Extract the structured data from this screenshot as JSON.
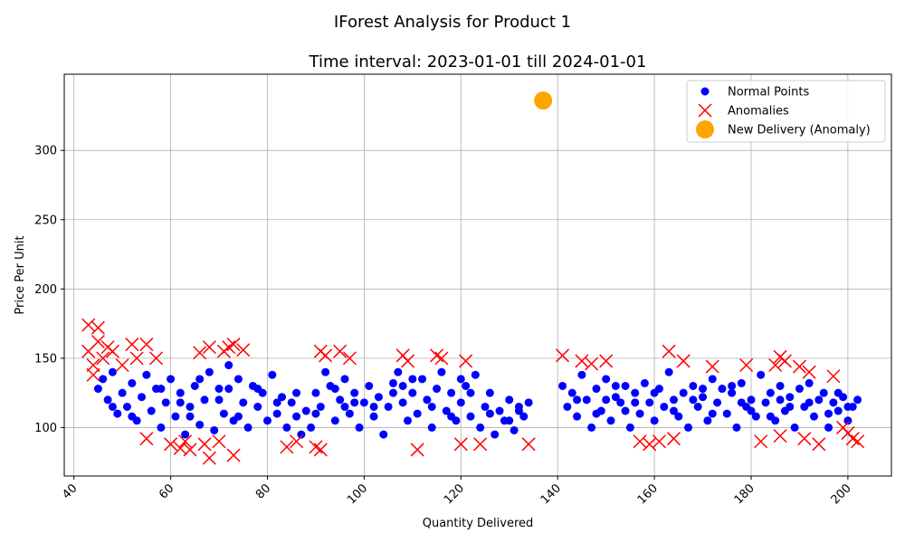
{
  "chart_data": {
    "type": "scatter",
    "title": "IForest Analysis for Product 1",
    "subtitle": "Time interval: 2023-01-01 till 2024-01-01",
    "xlabel": "Quantity Delivered",
    "ylabel": "Price Per Unit",
    "xlim": [
      38,
      209
    ],
    "ylim": [
      65,
      355
    ],
    "x_ticks": [
      40,
      60,
      80,
      100,
      120,
      140,
      160,
      180,
      200
    ],
    "y_ticks": [
      100,
      150,
      200,
      250,
      300
    ],
    "grid": true,
    "legend_position": "top-right",
    "series": [
      {
        "name": "Normal Points",
        "marker": "circle",
        "color": "#0000ff",
        "points": [
          [
            45,
            128
          ],
          [
            46,
            135
          ],
          [
            47,
            120
          ],
          [
            48,
            140
          ],
          [
            49,
            110
          ],
          [
            50,
            125
          ],
          [
            51,
            115
          ],
          [
            52,
            132
          ],
          [
            53,
            105
          ],
          [
            54,
            122
          ],
          [
            55,
            138
          ],
          [
            56,
            112
          ],
          [
            57,
            128
          ],
          [
            58,
            100
          ],
          [
            59,
            118
          ],
          [
            60,
            135
          ],
          [
            61,
            108
          ],
          [
            62,
            125
          ],
          [
            63,
            95
          ],
          [
            64,
            115
          ],
          [
            65,
            130
          ],
          [
            66,
            102
          ],
          [
            67,
            120
          ],
          [
            68,
            140
          ],
          [
            69,
            98
          ],
          [
            70,
            128
          ],
          [
            71,
            110
          ],
          [
            72,
            145
          ],
          [
            73,
            105
          ],
          [
            74,
            135
          ],
          [
            75,
            118
          ],
          [
            76,
            100
          ],
          [
            77,
            130
          ],
          [
            78,
            115
          ],
          [
            79,
            125
          ],
          [
            80,
            105
          ],
          [
            81,
            138
          ],
          [
            82,
            110
          ],
          [
            83,
            122
          ],
          [
            84,
            100
          ],
          [
            85,
            118
          ],
          [
            86,
            108
          ],
          [
            87,
            95
          ],
          [
            88,
            112
          ],
          [
            89,
            100
          ],
          [
            90,
            125
          ],
          [
            91,
            115
          ],
          [
            92,
            140
          ],
          [
            93,
            130
          ],
          [
            94,
            105
          ],
          [
            95,
            120
          ],
          [
            96,
            135
          ],
          [
            97,
            110
          ],
          [
            98,
            125
          ],
          [
            99,
            100
          ],
          [
            100,
            118
          ],
          [
            101,
            130
          ],
          [
            102,
            108
          ],
          [
            103,
            122
          ],
          [
            104,
            95
          ],
          [
            105,
            115
          ],
          [
            106,
            132
          ],
          [
            107,
            140
          ],
          [
            108,
            118
          ],
          [
            109,
            105
          ],
          [
            110,
            125
          ],
          [
            111,
            110
          ],
          [
            112,
            135
          ],
          [
            113,
            120
          ],
          [
            114,
            100
          ],
          [
            115,
            128
          ],
          [
            116,
            140
          ],
          [
            117,
            112
          ],
          [
            118,
            125
          ],
          [
            119,
            105
          ],
          [
            120,
            118
          ],
          [
            121,
            130
          ],
          [
            122,
            108
          ],
          [
            123,
            138
          ],
          [
            124,
            100
          ],
          [
            125,
            115
          ],
          [
            126,
            125
          ],
          [
            127,
            95
          ],
          [
            128,
            112
          ],
          [
            129,
            105
          ],
          [
            130,
            120
          ],
          [
            131,
            98
          ],
          [
            132,
            115
          ],
          [
            133,
            108
          ],
          [
            134,
            118
          ],
          [
            141,
            130
          ],
          [
            142,
            115
          ],
          [
            143,
            125
          ],
          [
            144,
            108
          ],
          [
            145,
            138
          ],
          [
            146,
            120
          ],
          [
            147,
            100
          ],
          [
            148,
            128
          ],
          [
            149,
            112
          ],
          [
            150,
            135
          ],
          [
            151,
            105
          ],
          [
            152,
            122
          ],
          [
            153,
            118
          ],
          [
            154,
            130
          ],
          [
            155,
            100
          ],
          [
            156,
            125
          ],
          [
            157,
            110
          ],
          [
            158,
            132
          ],
          [
            159,
            118
          ],
          [
            160,
            105
          ],
          [
            161,
            128
          ],
          [
            162,
            115
          ],
          [
            163,
            140
          ],
          [
            164,
            120
          ],
          [
            165,
            108
          ],
          [
            166,
            125
          ],
          [
            167,
            100
          ],
          [
            168,
            130
          ],
          [
            169,
            115
          ],
          [
            170,
            122
          ],
          [
            171,
            105
          ],
          [
            172,
            135
          ],
          [
            173,
            118
          ],
          [
            174,
            128
          ],
          [
            175,
            110
          ],
          [
            176,
            125
          ],
          [
            177,
            100
          ],
          [
            178,
            132
          ],
          [
            179,
            115
          ],
          [
            180,
            120
          ],
          [
            181,
            108
          ],
          [
            182,
            138
          ],
          [
            183,
            118
          ],
          [
            184,
            125
          ],
          [
            185,
            105
          ],
          [
            186,
            130
          ],
          [
            187,
            112
          ],
          [
            188,
            122
          ],
          [
            189,
            100
          ],
          [
            190,
            128
          ],
          [
            191,
            115
          ],
          [
            192,
            132
          ],
          [
            193,
            108
          ],
          [
            194,
            120
          ],
          [
            195,
            125
          ],
          [
            196,
            100
          ],
          [
            197,
            118
          ],
          [
            198,
            112
          ],
          [
            199,
            122
          ],
          [
            200,
            105
          ],
          [
            201,
            115
          ],
          [
            202,
            120
          ],
          [
            48,
            115
          ],
          [
            52,
            108
          ],
          [
            58,
            128
          ],
          [
            62,
            118
          ],
          [
            66,
            135
          ],
          [
            70,
            120
          ],
          [
            74,
            108
          ],
          [
            78,
            128
          ],
          [
            82,
            118
          ],
          [
            86,
            125
          ],
          [
            90,
            110
          ],
          [
            94,
            128
          ],
          [
            98,
            118
          ],
          [
            102,
            115
          ],
          [
            106,
            125
          ],
          [
            110,
            135
          ],
          [
            114,
            115
          ],
          [
            118,
            108
          ],
          [
            122,
            125
          ],
          [
            126,
            110
          ],
          [
            130,
            105
          ],
          [
            144,
            120
          ],
          [
            148,
            110
          ],
          [
            152,
            130
          ],
          [
            156,
            118
          ],
          [
            160,
            125
          ],
          [
            164,
            112
          ],
          [
            168,
            120
          ],
          [
            172,
            110
          ],
          [
            176,
            130
          ],
          [
            180,
            112
          ],
          [
            184,
            108
          ],
          [
            188,
            115
          ],
          [
            192,
            118
          ],
          [
            196,
            110
          ],
          [
            200,
            115
          ],
          [
            72,
            128
          ],
          [
            108,
            130
          ],
          [
            120,
            135
          ],
          [
            154,
            112
          ],
          [
            170,
            128
          ],
          [
            186,
            120
          ],
          [
            64,
            108
          ],
          [
            96,
            115
          ],
          [
            132,
            112
          ],
          [
            150,
            120
          ],
          [
            178,
            118
          ],
          [
            198,
            125
          ]
        ]
      },
      {
        "name": "Anomalies",
        "marker": "x",
        "color": "#ff0000",
        "points": [
          [
            43,
            174
          ],
          [
            43,
            155
          ],
          [
            44,
            145
          ],
          [
            44,
            138
          ],
          [
            45,
            172
          ],
          [
            45,
            162
          ],
          [
            46,
            150
          ],
          [
            47,
            158
          ],
          [
            48,
            155
          ],
          [
            50,
            145
          ],
          [
            52,
            160
          ],
          [
            53,
            150
          ],
          [
            55,
            160
          ],
          [
            55,
            92
          ],
          [
            57,
            150
          ],
          [
            60,
            88
          ],
          [
            62,
            85
          ],
          [
            63,
            90
          ],
          [
            64,
            84
          ],
          [
            66,
            154
          ],
          [
            67,
            88
          ],
          [
            68,
            78
          ],
          [
            68,
            158
          ],
          [
            70,
            90
          ],
          [
            71,
            155
          ],
          [
            72,
            158
          ],
          [
            73,
            160
          ],
          [
            73,
            80
          ],
          [
            75,
            156
          ],
          [
            84,
            86
          ],
          [
            86,
            90
          ],
          [
            90,
            86
          ],
          [
            91,
            155
          ],
          [
            91,
            84
          ],
          [
            92,
            152
          ],
          [
            95,
            155
          ],
          [
            97,
            150
          ],
          [
            108,
            152
          ],
          [
            109,
            148
          ],
          [
            111,
            84
          ],
          [
            115,
            152
          ],
          [
            116,
            150
          ],
          [
            120,
            88
          ],
          [
            121,
            148
          ],
          [
            124,
            88
          ],
          [
            134,
            88
          ],
          [
            141,
            152
          ],
          [
            145,
            148
          ],
          [
            147,
            146
          ],
          [
            150,
            148
          ],
          [
            157,
            90
          ],
          [
            159,
            88
          ],
          [
            161,
            90
          ],
          [
            163,
            155
          ],
          [
            164,
            92
          ],
          [
            166,
            148
          ],
          [
            172,
            144
          ],
          [
            179,
            145
          ],
          [
            182,
            90
          ],
          [
            185,
            145
          ],
          [
            186,
            151
          ],
          [
            186,
            94
          ],
          [
            187,
            148
          ],
          [
            190,
            144
          ],
          [
            191,
            92
          ],
          [
            192,
            140
          ],
          [
            194,
            88
          ],
          [
            197,
            137
          ],
          [
            199,
            100
          ],
          [
            200,
            96
          ],
          [
            201,
            92
          ],
          [
            202,
            90
          ]
        ]
      },
      {
        "name": "New Delivery (Anomaly)",
        "marker": "circle-large",
        "color": "#ffa500",
        "points": [
          [
            137,
            336
          ]
        ]
      }
    ]
  }
}
